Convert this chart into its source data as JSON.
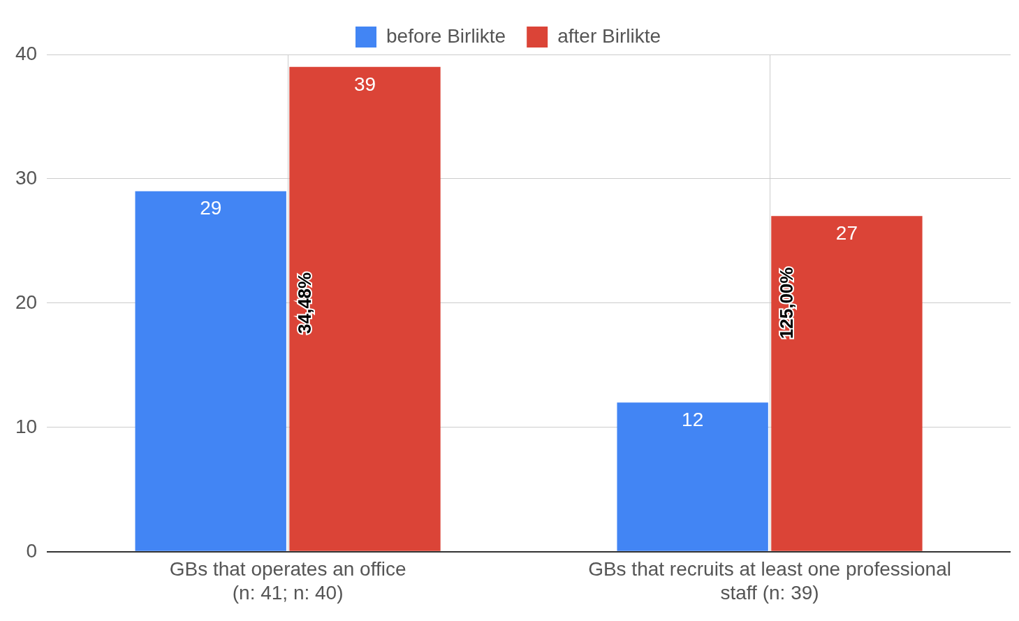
{
  "chart_data": {
    "type": "bar",
    "categories": [
      "GBs that operates an office\n(n: 41; n: 40)",
      "GBs that recruits at least one professional\nstaff (n: 39)"
    ],
    "series": [
      {
        "name": "before Birlikte",
        "color": "#4285f4",
        "values": [
          29,
          12
        ]
      },
      {
        "name": "after Birlikte",
        "color": "#db4437",
        "values": [
          39,
          27
        ]
      }
    ],
    "ylim": [
      0,
      40
    ],
    "yticks": [
      0,
      10,
      20,
      30,
      40
    ],
    "grid": true,
    "legend": "top",
    "data_labels": true,
    "annotations": [
      {
        "text": "34,48%",
        "x": "GBs that operates an office\n(n: 41; n: 40)",
        "y": 20
      },
      {
        "text": "125,00%",
        "x": "GBs that recruits at least one professional\nstaff (n: 39)",
        "y": 20
      }
    ]
  }
}
